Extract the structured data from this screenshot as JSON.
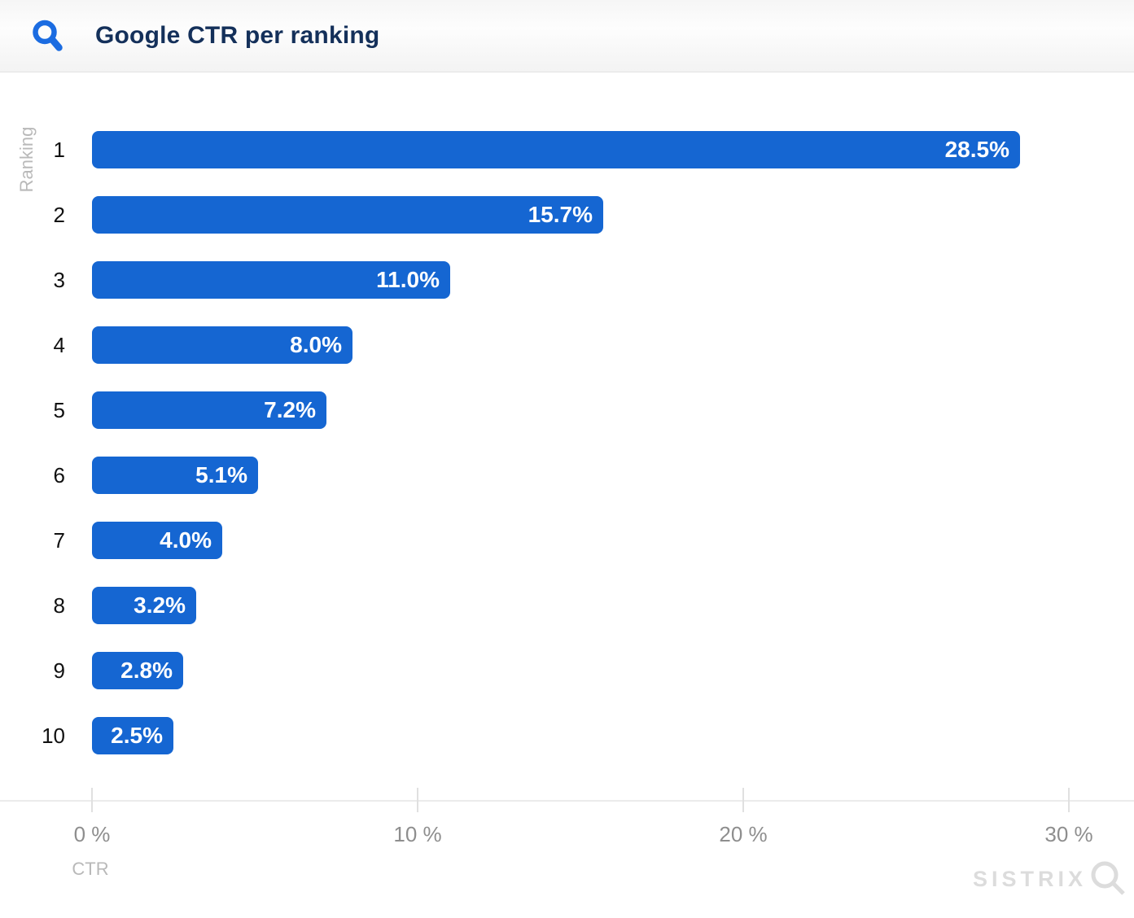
{
  "header": {
    "title": "Google CTR per ranking"
  },
  "chart_data": {
    "type": "bar",
    "orientation": "horizontal",
    "title": "Google CTR per ranking",
    "categories": [
      "1",
      "2",
      "3",
      "4",
      "5",
      "6",
      "7",
      "8",
      "9",
      "10"
    ],
    "values": [
      28.5,
      15.7,
      11.0,
      8.0,
      7.2,
      5.1,
      4.0,
      3.2,
      2.8,
      2.5
    ],
    "value_labels": [
      "28.5%",
      "15.7%",
      "11.0%",
      "8.0%",
      "7.2%",
      "5.1%",
      "4.0%",
      "3.2%",
      "2.8%",
      "2.5%"
    ],
    "xlabel": "CTR",
    "ylabel": "Ranking",
    "xlim": [
      0,
      32
    ],
    "x_ticks": [
      0,
      10,
      20,
      30
    ],
    "x_tick_labels": [
      "0 %",
      "10 %",
      "20 %",
      "30 %"
    ],
    "grid": false,
    "legend": false,
    "bar_color": "#1566d2",
    "value_label_color": "#ffffff"
  },
  "watermark": {
    "text": "SISTRIX"
  },
  "colors": {
    "accent_blue": "#1b6ce1",
    "bar_blue": "#1566d2",
    "title_navy": "#14305a",
    "tick_label_gray": "#8e8e8e",
    "axis_title_gray": "#b9b9b9",
    "watermark_gray": "#dcdcdc"
  }
}
